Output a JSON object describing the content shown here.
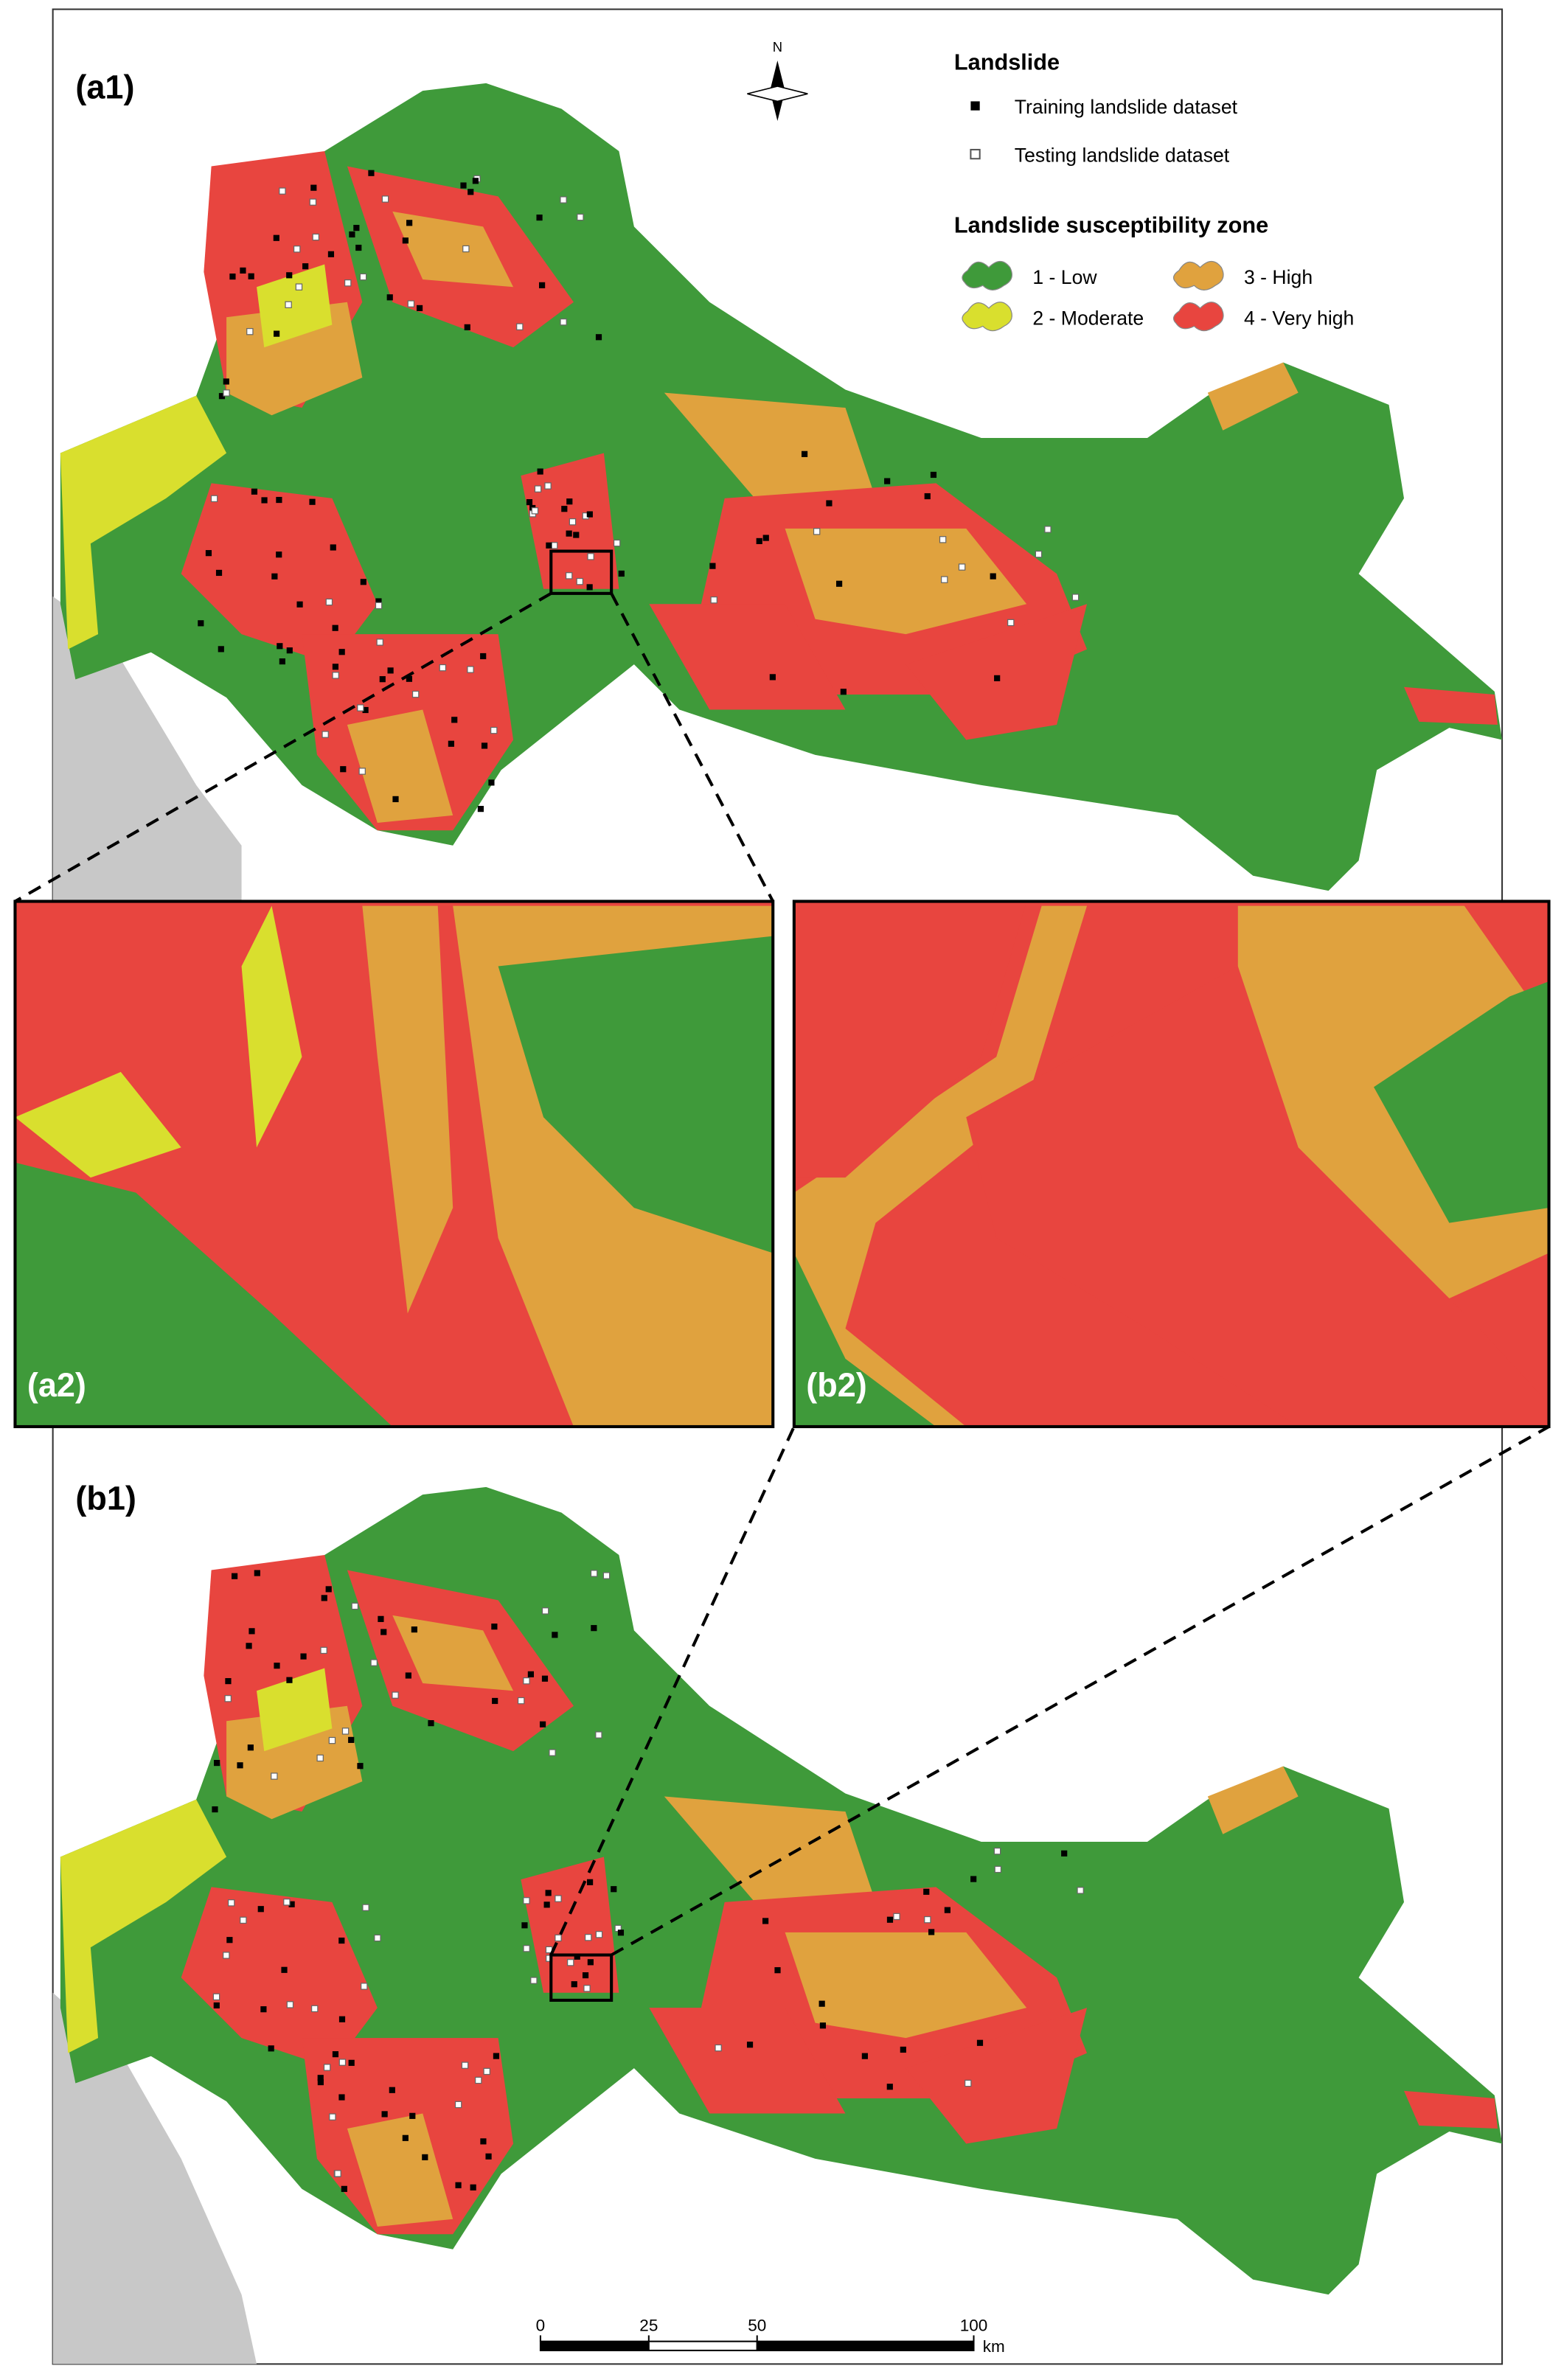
{
  "panels": {
    "a1": "(a1)",
    "a2": "(a2)",
    "b2": "(b2)",
    "b1": "(b1)"
  },
  "north": "N",
  "legend": {
    "landslide_title": "Landslide",
    "training": "Training landslide dataset",
    "testing": "Testing landslide dataset",
    "zone_title": "Landslide susceptibility zone",
    "zones": [
      {
        "label": "1 - Low",
        "color": "#3f9a3a"
      },
      {
        "label": "2 - Moderate",
        "color": "#d9df2e"
      },
      {
        "label": "3 - High",
        "color": "#e0a23e"
      },
      {
        "label": "4 - Very high",
        "color": "#e8453f"
      }
    ]
  },
  "scale_bar": {
    "ticks": [
      0,
      25,
      50,
      100
    ],
    "unit": "km"
  }
}
